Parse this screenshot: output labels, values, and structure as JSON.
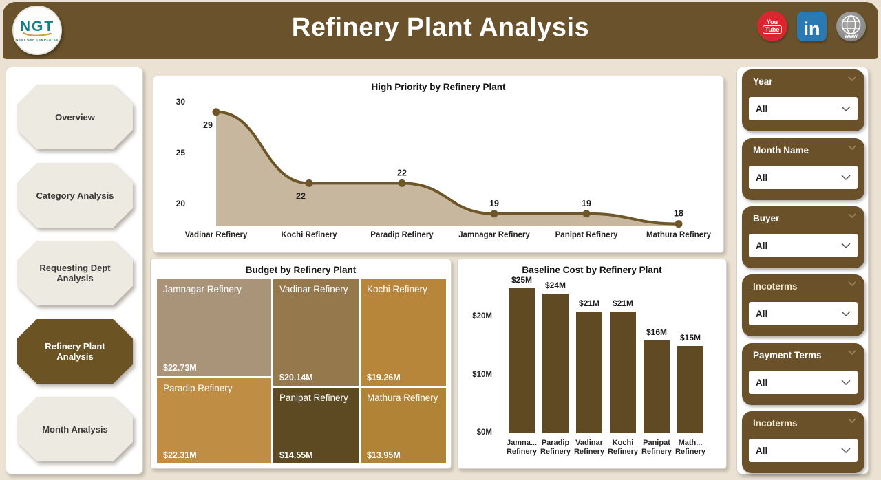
{
  "header": {
    "title": "Refinery Plant Analysis",
    "logo_text": "NGT",
    "logo_subtext": "NEXT GEN TEMPLATES",
    "social": {
      "youtube_top": "You",
      "youtube_bottom": "Tube",
      "linkedin": "in",
      "globe": "www"
    }
  },
  "sidebar": {
    "items": [
      {
        "label": "Overview",
        "active": false
      },
      {
        "label": "Category Analysis",
        "active": false
      },
      {
        "label": "Requesting Dept Analysis",
        "active": false
      },
      {
        "label": "Refinery Plant Analysis",
        "active": true
      },
      {
        "label": "Month Analysis",
        "active": false
      }
    ]
  },
  "filters": {
    "cards": [
      {
        "label": "Year",
        "value": "All"
      },
      {
        "label": "Month Name",
        "value": "All"
      },
      {
        "label": "Buyer",
        "value": "All"
      },
      {
        "label": "Incoterms",
        "value": "All"
      },
      {
        "label": "Payment Terms",
        "value": "All"
      },
      {
        "label": "Incoterms",
        "value": "All"
      }
    ]
  },
  "colors": {
    "brand_brown": "#6a532c",
    "active_nav": "#6b5324",
    "bar_fill": "#5f4a24",
    "line_stroke": "#6f5628",
    "area_fill": "#c6b79e",
    "youtube_red": "#d7282f",
    "linkedin_blue": "#2b79b2",
    "globe_gray": "#8c8c8c"
  },
  "chart_data": [
    {
      "type": "line",
      "title": "High Priority by Refinery Plant",
      "categories": [
        "Vadinar Refinery",
        "Kochi Refinery",
        "Paradip Refinery",
        "Jamnagar Refinery",
        "Panipat Refinery",
        "Mathura Refinery"
      ],
      "values": [
        29,
        22,
        22,
        19,
        19,
        18
      ],
      "data_labels": [
        "29",
        "22",
        "22",
        "19",
        "19",
        "18"
      ],
      "label_position": [
        "below",
        "below",
        "above",
        "above",
        "above",
        "above"
      ],
      "yticks": [
        30,
        25,
        20
      ],
      "ylim": [
        17.5,
        31
      ],
      "grid": false,
      "legend": "none",
      "area": true,
      "line_color": "#6f5628",
      "fill_color": "#c6b79e"
    },
    {
      "type": "treemap",
      "title": "Budget by Refinery Plant",
      "items": [
        {
          "name": "Jamnagar Refinery",
          "label": "$22.73M",
          "value": 22.73,
          "color": "#a99479"
        },
        {
          "name": "Vadinar Refinery",
          "label": "$20.14M",
          "value": 20.14,
          "color": "#96784d"
        },
        {
          "name": "Kochi Refinery",
          "label": "$19.26M",
          "value": 19.26,
          "color": "#b8863b"
        },
        {
          "name": "Paradip Refinery",
          "label": "$22.31M",
          "value": 22.31,
          "color": "#bf8e44"
        },
        {
          "name": "Panipat Refinery",
          "label": "$14.55M",
          "value": 14.55,
          "color": "#5d4a23"
        },
        {
          "name": "Mathura Refinery",
          "label": "$13.95M",
          "value": 13.95,
          "color": "#b08336"
        }
      ]
    },
    {
      "type": "bar",
      "title": "Baseline Cost by Refinery Plant",
      "categories": [
        [
          "Jamna...",
          "Refinery"
        ],
        [
          "Paradip",
          "Refinery"
        ],
        [
          "Vadinar",
          "Refinery"
        ],
        [
          "Kochi",
          "Refinery"
        ],
        [
          "Panipat",
          "Refinery"
        ],
        [
          "Math...",
          "Refinery"
        ]
      ],
      "values": [
        25,
        24,
        21,
        21,
        16,
        15
      ],
      "data_labels": [
        "$25M",
        "$24M",
        "$21M",
        "$21M",
        "$16M",
        "$15M"
      ],
      "yticks": [
        {
          "label": "$20M",
          "value": 20
        },
        {
          "label": "$10M",
          "value": 10
        },
        {
          "label": "$0M",
          "value": 0
        }
      ],
      "ylim": [
        0,
        27
      ],
      "grid": false,
      "legend": "none",
      "bar_color": "#5f4a24"
    }
  ]
}
